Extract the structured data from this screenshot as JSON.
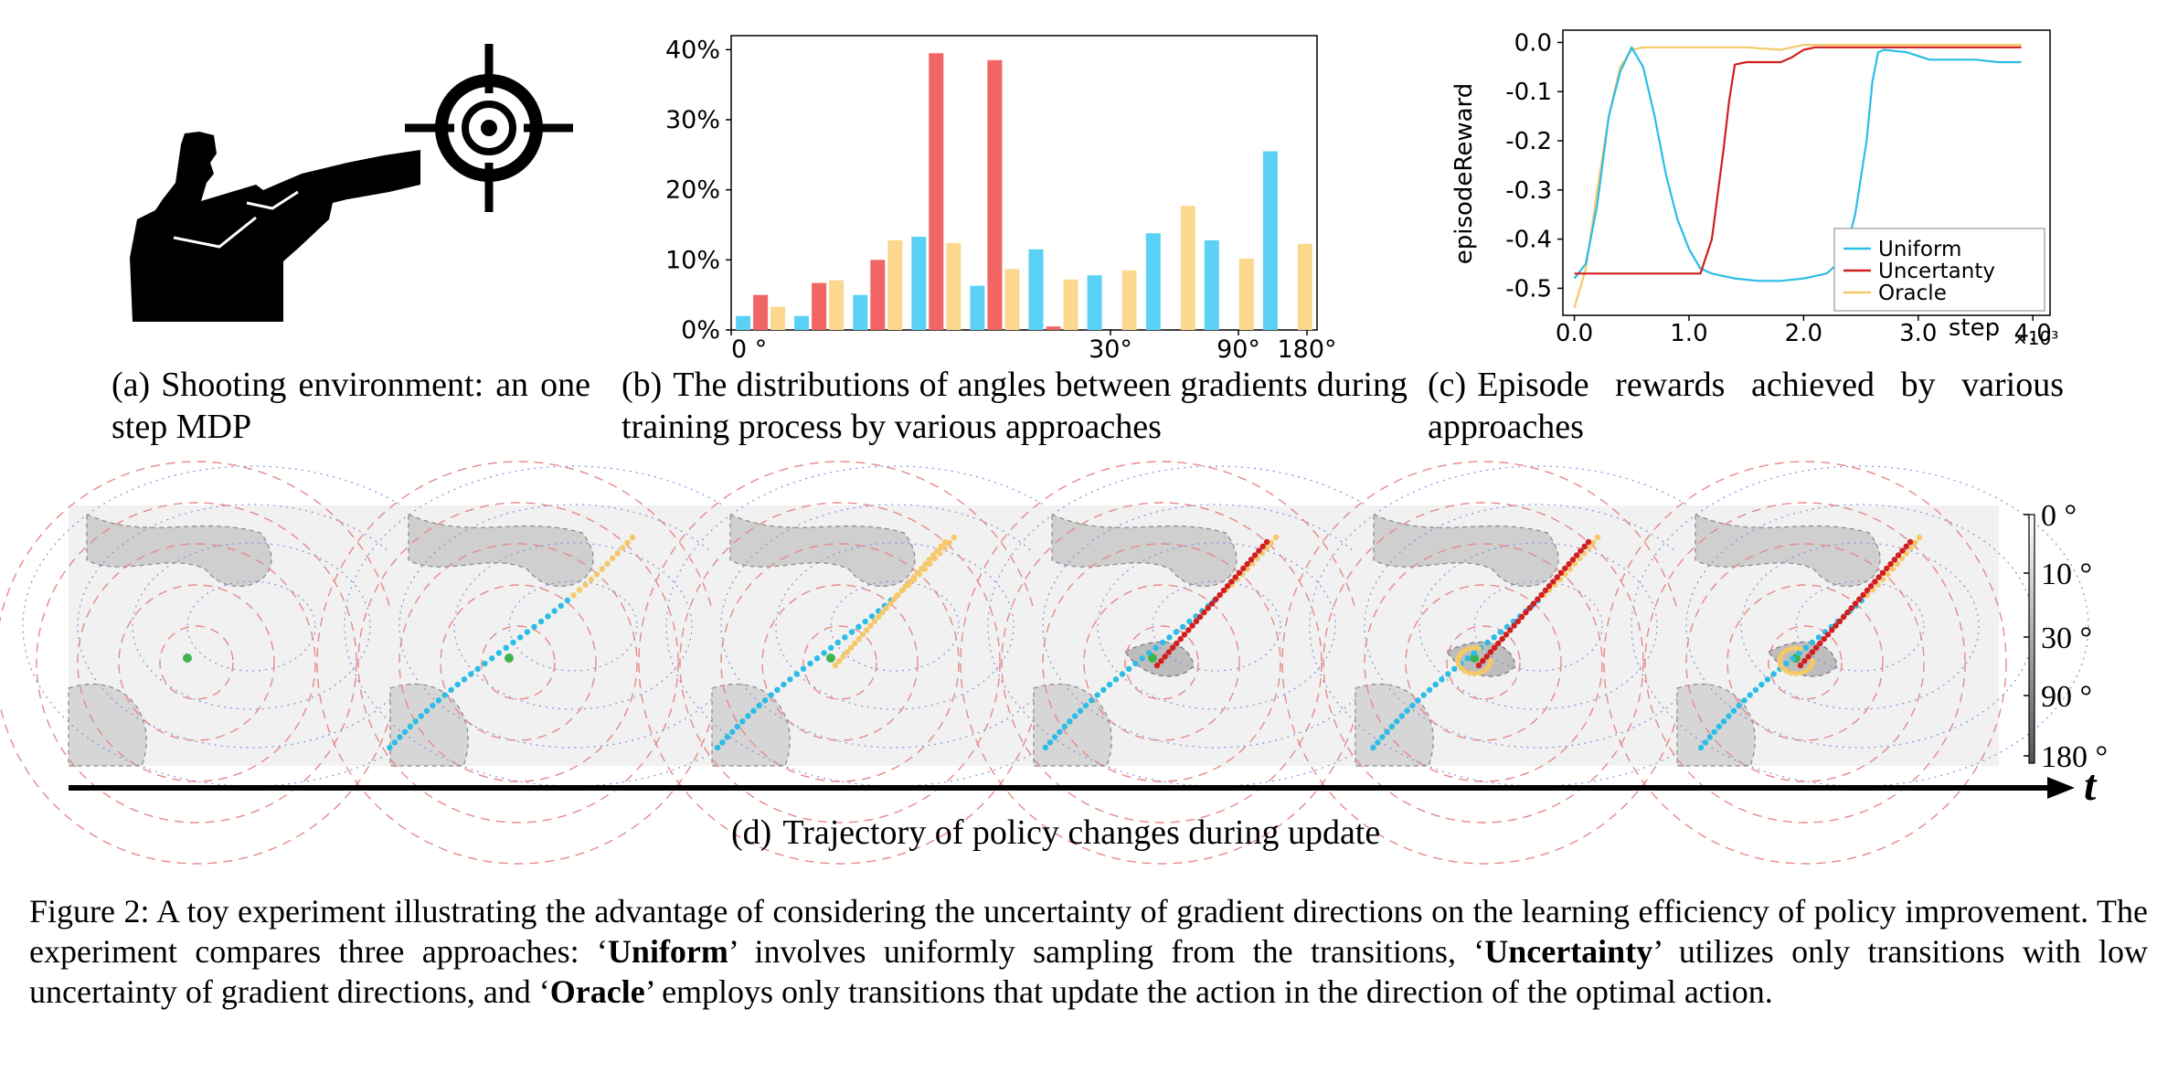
{
  "panel_a": {
    "caption_tag": "(a)",
    "caption_text": "Shooting environment: an one step MDP",
    "icons": [
      "shooter-icon",
      "crosshair-icon"
    ]
  },
  "panel_b": {
    "caption_tag": "(b)",
    "caption_text": "The distributions of angles between gradients during training process by various approaches"
  },
  "panel_c": {
    "caption_tag": "(c)",
    "caption_text": "Episode rewards achieved by various approaches"
  },
  "panel_d": {
    "caption_tag": "(d)",
    "caption_text": "Trajectory of policy changes during update",
    "time_axis_label": "t",
    "colorbar_ticks": [
      "0 °",
      "10 °",
      "30 °",
      "90 °",
      "180 °"
    ],
    "frame_count": 6
  },
  "figure_caption": {
    "lead": "Figure 2: A toy experiment illustrating the advantage of considering the uncertainty of gradient directions on the learning efficiency of policy improvement. The experiment compares three approaches: ‘",
    "b1": "Uniform",
    "mid1": "’ involves uniformly sampling from the transitions, ‘",
    "b2": "Uncertainty",
    "mid2": "’ utilizes only transitions with low uncertainty of gradient directions, and ‘",
    "b3": "Oracle",
    "tail": "’ employs only transitions that update the action in the direction of the optimal action."
  },
  "colors": {
    "uniform": "#2bbde6",
    "uncertainty": "#d11e1e",
    "oracle": "#f5c96a",
    "bar_uniform": "#5bd2f5",
    "bar_uncertainty": "#f26565",
    "bar_oracle": "#fbd88e"
  },
  "chart_data": [
    {
      "type": "bar",
      "panel": "b",
      "ylim": [
        0,
        42
      ],
      "ytick_labels": [
        "0%",
        "10%",
        "20%",
        "30%",
        "40%"
      ],
      "xtick_labels": [
        "0 °",
        "30°",
        "90°",
        "180°"
      ],
      "series": [
        {
          "key": "uniform",
          "values": [
            2,
            2,
            5,
            13.3,
            6.3,
            11.5,
            7.8,
            13.8,
            12.8,
            25.5
          ]
        },
        {
          "key": "uncertainty",
          "values": [
            5,
            6.7,
            10,
            39.5,
            38.5,
            0.5,
            0,
            0,
            0,
            0
          ]
        },
        {
          "key": "oracle",
          "values": [
            3.3,
            7.1,
            12.8,
            12.4,
            8.7,
            7.2,
            8.5,
            17.7,
            10.2,
            12.3
          ]
        }
      ]
    },
    {
      "type": "line",
      "panel": "c",
      "xlabel": "step",
      "ylabel": "episodeReward",
      "x_multiplier": "×10³",
      "xlim": [
        -0.1,
        4.15
      ],
      "ylim": [
        -0.555,
        0.025
      ],
      "xticks": [
        0.0,
        1.0,
        2.0,
        3.0,
        4.0
      ],
      "xtick_labels": [
        "0.0",
        "1.0",
        "2.0",
        "3.0",
        "4.0"
      ],
      "yticks": [
        0.0,
        -0.1,
        -0.2,
        -0.3,
        -0.4,
        -0.5
      ],
      "ytick_labels": [
        "0.0",
        "-0.1",
        "-0.2",
        "-0.3",
        "-0.4",
        "-0.5"
      ],
      "legend_position": "bottom-right",
      "series": [
        {
          "name": "Uniform",
          "key": "uniform",
          "x": [
            0.0,
            0.1,
            0.2,
            0.3,
            0.4,
            0.5,
            0.6,
            0.7,
            0.8,
            0.9,
            1.0,
            1.1,
            1.2,
            1.4,
            1.6,
            1.8,
            2.0,
            2.2,
            2.35,
            2.45,
            2.55,
            2.6,
            2.65,
            2.7,
            2.9,
            3.1,
            3.3,
            3.5,
            3.7,
            3.9
          ],
          "y": [
            -0.48,
            -0.45,
            -0.33,
            -0.15,
            -0.06,
            -0.01,
            -0.05,
            -0.15,
            -0.27,
            -0.36,
            -0.42,
            -0.46,
            -0.47,
            -0.48,
            -0.485,
            -0.485,
            -0.48,
            -0.47,
            -0.44,
            -0.35,
            -0.2,
            -0.08,
            -0.02,
            -0.015,
            -0.02,
            -0.035,
            -0.035,
            -0.035,
            -0.04,
            -0.04
          ]
        },
        {
          "name": "Uncertanty",
          "key": "uncertainty",
          "x": [
            0.0,
            0.5,
            1.0,
            1.1,
            1.2,
            1.3,
            1.35,
            1.4,
            1.5,
            1.6,
            1.8,
            1.9,
            2.0,
            2.1,
            2.5,
            3.0,
            3.5,
            3.9
          ],
          "y": [
            -0.47,
            -0.47,
            -0.47,
            -0.47,
            -0.4,
            -0.22,
            -0.12,
            -0.045,
            -0.04,
            -0.04,
            -0.04,
            -0.03,
            -0.015,
            -0.01,
            -0.01,
            -0.01,
            -0.01,
            -0.01
          ]
        },
        {
          "name": "Oracle",
          "key": "oracle",
          "x": [
            0.0,
            0.1,
            0.2,
            0.3,
            0.4,
            0.5,
            0.6,
            0.7,
            1.0,
            1.5,
            1.8,
            2.0,
            3.0,
            3.9
          ],
          "y": [
            -0.54,
            -0.46,
            -0.3,
            -0.15,
            -0.05,
            -0.015,
            -0.01,
            -0.01,
            -0.01,
            -0.01,
            -0.015,
            -0.005,
            -0.005,
            -0.005
          ]
        }
      ]
    }
  ]
}
